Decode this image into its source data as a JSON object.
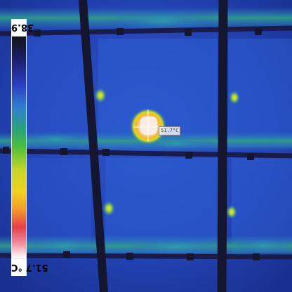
{
  "image": {
    "subject": "Infrared thermal image of solar panel cells",
    "palette": "rainbow",
    "colors": {
      "background_cold": "#1a2f86",
      "warm_band": "#3a9f7a",
      "hotspot_core": "#f7e6d8",
      "hotspot_ring": "#f0c020",
      "frame": "#16183a"
    }
  },
  "scale": {
    "max_label": "38.9",
    "min_label": "51.7 °C",
    "min_value": 38.9,
    "max_value": 51.7,
    "unit": "°C",
    "orientation": "rotated 180 degrees (image shown upside down)"
  },
  "spot": {
    "label": "51.7°C"
  }
}
